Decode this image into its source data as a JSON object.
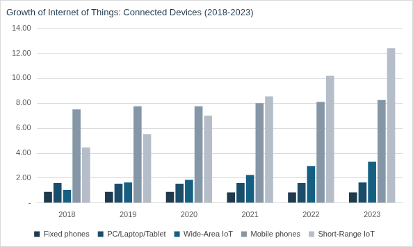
{
  "chart_data": {
    "type": "bar",
    "title": "Growth of Internet of Things: Connected Devices (2018-2023)",
    "categories": [
      "2018",
      "2019",
      "2020",
      "2021",
      "2022",
      "2023"
    ],
    "series": [
      {
        "name": "Fixed phones",
        "color": "#1f3a4d",
        "values": [
          0.9,
          0.9,
          0.9,
          0.85,
          0.85,
          0.85
        ]
      },
      {
        "name": "PC/Laptop/Tablet",
        "color": "#1b4d6b",
        "values": [
          1.6,
          1.55,
          1.55,
          1.6,
          1.6,
          1.65
        ]
      },
      {
        "name": "Wide-Area IoT",
        "color": "#156082",
        "values": [
          1.05,
          1.65,
          1.85,
          2.25,
          2.95,
          3.3
        ]
      },
      {
        "name": "Mobile phones",
        "color": "#8596a7",
        "values": [
          7.5,
          7.75,
          7.75,
          8.0,
          8.1,
          8.25
        ]
      },
      {
        "name": "Short-Range IoT",
        "color": "#b5bec8",
        "values": [
          4.45,
          5.5,
          7.0,
          8.55,
          10.2,
          12.4
        ]
      }
    ],
    "ylim": [
      0,
      14
    ],
    "yticks": [
      {
        "value": 0,
        "label": "-"
      },
      {
        "value": 2,
        "label": "2.00"
      },
      {
        "value": 4,
        "label": "4.00"
      },
      {
        "value": 6,
        "label": "6.00"
      },
      {
        "value": 8,
        "label": "8.00"
      },
      {
        "value": 10,
        "label": "10.00"
      },
      {
        "value": 12,
        "label": "12.00"
      },
      {
        "value": 14,
        "label": "14.00"
      }
    ],
    "grid": true,
    "legend": "bottom"
  }
}
